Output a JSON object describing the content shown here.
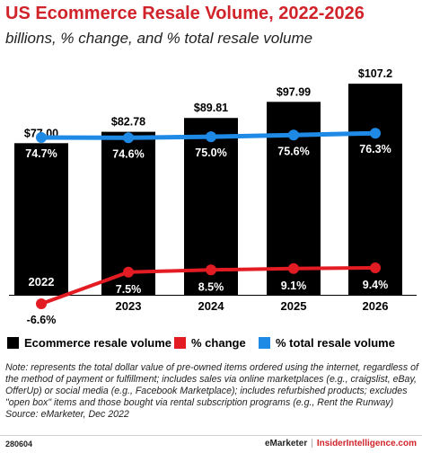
{
  "header": {
    "title": "US Ecommerce Resale Volume, 2022-2026",
    "subtitle": "billions, % change, and % total resale volume"
  },
  "chart_data": {
    "type": "bar",
    "categories": [
      "2022",
      "2023",
      "2024",
      "2025",
      "2026"
    ],
    "series": [
      {
        "name": "Ecommerce resale volume",
        "type": "bar",
        "values": [
          77.0,
          82.78,
          89.81,
          97.99,
          107.2
        ],
        "labels": [
          "$77.00",
          "$82.78",
          "$89.81",
          "$97.99",
          "$107.2"
        ],
        "color": "#000000"
      },
      {
        "name": "% change",
        "type": "line",
        "values": [
          -6.6,
          7.5,
          8.5,
          9.1,
          9.4
        ],
        "labels": [
          "-6.6%",
          "7.5%",
          "8.5%",
          "9.1%",
          "9.4%"
        ],
        "color": "#e31b23"
      },
      {
        "name": "% total resale volume",
        "type": "line",
        "values": [
          74.7,
          74.6,
          75.0,
          75.6,
          76.3
        ],
        "labels": [
          "74.7%",
          "74.6%",
          "75.0%",
          "75.6%",
          "76.3%"
        ],
        "color": "#1e8ae6"
      }
    ],
    "bar_ylim": [
      0,
      110
    ],
    "change_ylim": [
      -7,
      30
    ],
    "share_ylim": [
      0,
      100
    ],
    "legend_position": "bottom",
    "grid": false
  },
  "legend": {
    "items": [
      {
        "label": "Ecommerce resale volume",
        "color": "#000000"
      },
      {
        "label": "% change",
        "color": "#e31b23"
      },
      {
        "label": "% total resale volume",
        "color": "#1e8ae6"
      }
    ]
  },
  "note": "Note: represents the total dollar value of pre-owned items ordered using the internet, regardless of the method of payment or fulfillment; includes sales via online marketplaces (e.g., craigslist, eBay, OfferUp) or social media (e.g., Facebook Marketplace); includes refurbished products; excludes \"open box\" items and those bought via rental subscription programs (e.g., Rent the Runway)",
  "source": "Source: eMarketer, Dec 2022",
  "footer": {
    "chart_id": "280604",
    "brand_left": "eMarketer",
    "separator": "|",
    "brand_right": "InsiderIntelligence.com"
  }
}
